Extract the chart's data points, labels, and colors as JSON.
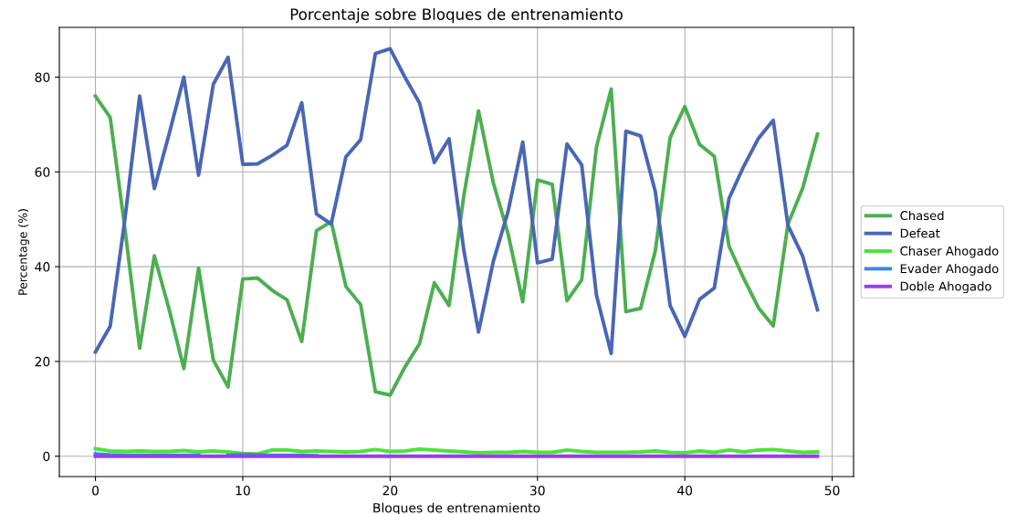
{
  "chart_data": {
    "type": "line",
    "title": "Porcentaje sobre Bloques de entrenamiento",
    "xlabel": "Bloques de entrenamiento",
    "ylabel": "Percentage (%)",
    "x": [
      0,
      1,
      2,
      3,
      4,
      5,
      6,
      7,
      8,
      9,
      10,
      11,
      12,
      13,
      14,
      15,
      16,
      17,
      18,
      19,
      20,
      21,
      22,
      23,
      24,
      25,
      26,
      27,
      28,
      29,
      30,
      31,
      32,
      33,
      34,
      35,
      36,
      37,
      38,
      39,
      40,
      41,
      42,
      43,
      44,
      45,
      46,
      47,
      48,
      49
    ],
    "series": [
      {
        "name": "Chased",
        "color": "#4caf50",
        "values": [
          76,
          71.5,
          48,
          22.8,
          42.3,
          31,
          18.5,
          39.7,
          20.3,
          14.6,
          37.4,
          37.6,
          35,
          33,
          24.2,
          47.6,
          49.5,
          35.8,
          32,
          13.6,
          12.9,
          18.8,
          23.8,
          36.6,
          31.8,
          55,
          72.9,
          57.7,
          47,
          32.6,
          58.3,
          57.4,
          32.8,
          37.2,
          65.2,
          77.5,
          30.5,
          31.2,
          43.4,
          67.2,
          73.8,
          65.8,
          63.3,
          44.3,
          37.5,
          31.3,
          27.5,
          49,
          56.6,
          68
        ]
      },
      {
        "name": "Defeat",
        "color": "#4a66b5",
        "values": [
          22,
          27.4,
          50,
          76,
          56.5,
          68,
          80,
          59.3,
          78.5,
          84.2,
          61.6,
          61.7,
          63.5,
          65.6,
          74.6,
          51.1,
          49,
          63.2,
          66.8,
          85,
          86,
          80,
          74.5,
          62,
          67,
          43.5,
          26.2,
          41.1,
          51.6,
          66.3,
          40.8,
          41.6,
          65.9,
          61.5,
          34,
          21.7,
          68.6,
          67.6,
          55.8,
          31.8,
          25.3,
          33.1,
          35.5,
          54.4,
          61.2,
          67.1,
          70.9,
          48.7,
          42.2,
          30.9
        ]
      },
      {
        "name": "Chaser Ahogado",
        "color": "#4be33a",
        "values": [
          1.6,
          1.1,
          1,
          1.1,
          1,
          1,
          1.2,
          0.9,
          1.1,
          0.9,
          0.6,
          0.5,
          1.3,
          1.3,
          1,
          1.1,
          1,
          0.9,
          1,
          1.4,
          1,
          1.1,
          1.5,
          1.3,
          1.1,
          0.9,
          0.7,
          0.8,
          0.8,
          1,
          0.8,
          0.8,
          1.3,
          1,
          0.8,
          0.8,
          0.8,
          0.9,
          1.1,
          0.8,
          0.7,
          1.1,
          0.8,
          1.3,
          0.9,
          1.3,
          1.4,
          1.1,
          0.8,
          0.9
        ]
      },
      {
        "name": "Evader Ahogado",
        "color": "#3a86e8",
        "values": [
          0.5,
          0.3,
          0.2,
          0.2,
          0.2,
          0.2,
          0.2,
          0.2,
          null,
          0.2,
          0.4,
          0.3,
          0.2,
          0.2,
          0.2,
          0.1,
          null,
          null,
          null,
          null,
          null,
          null,
          null,
          null,
          null,
          null,
          null,
          null,
          null,
          null,
          null,
          null,
          null,
          null,
          null,
          null,
          null,
          null,
          null,
          null,
          null,
          null,
          null,
          null,
          null,
          null,
          null,
          null,
          null,
          null
        ]
      },
      {
        "name": "Doble Ahogado",
        "color": "#9b3cf0",
        "values": [
          0,
          0,
          0,
          0,
          0,
          0,
          0,
          0,
          0,
          0,
          0,
          0,
          0,
          0,
          0,
          0,
          0,
          0,
          0,
          0,
          0,
          0,
          0,
          0,
          0,
          0,
          0,
          0,
          0,
          0,
          0,
          0,
          0,
          0,
          0,
          0,
          0,
          0,
          0,
          0,
          0,
          0,
          0,
          0,
          0,
          0,
          0,
          0,
          0,
          0
        ]
      }
    ],
    "xlim": [
      -2.45,
      51.45
    ],
    "ylim": [
      -4.3,
      90.5
    ],
    "xticks": [
      0,
      10,
      20,
      30,
      40,
      50
    ],
    "yticks": [
      0,
      20,
      40,
      60,
      80
    ],
    "grid": true,
    "legend": "right",
    "line_style": "solid"
  }
}
